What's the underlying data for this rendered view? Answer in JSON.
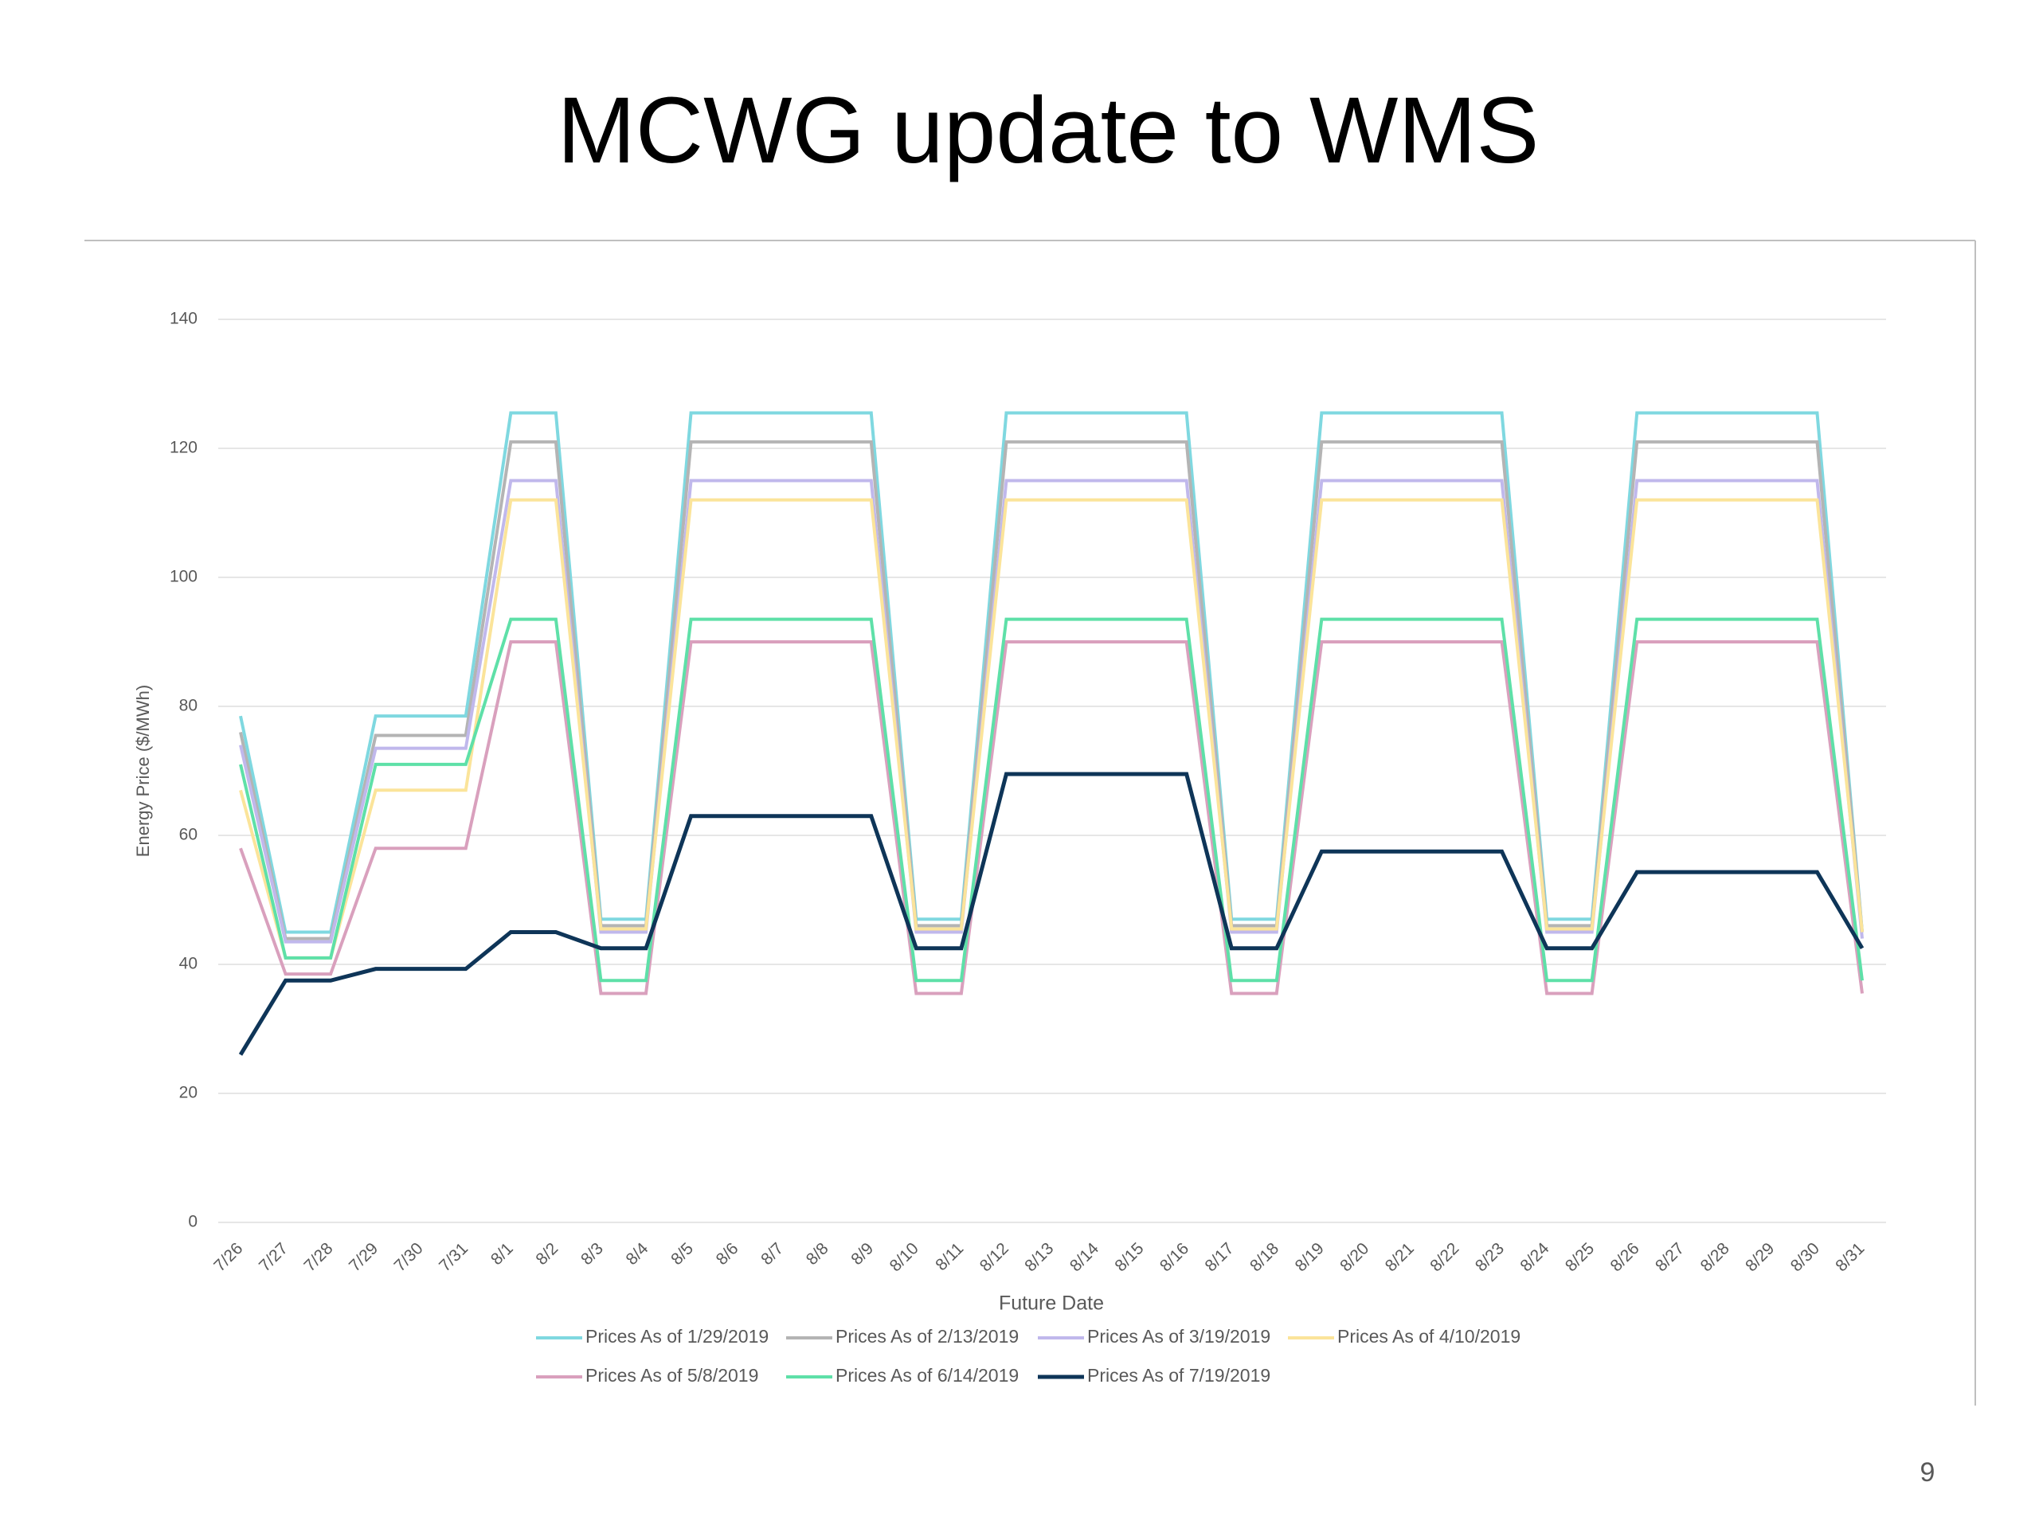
{
  "page_title": "MCWG update to WMS",
  "page_number": "9",
  "chart_data": {
    "type": "line",
    "x_label": "Future Date",
    "y_label": "Energy Price ($/MWh)",
    "categories": [
      "7/26",
      "7/27",
      "7/28",
      "7/29",
      "7/30",
      "7/31",
      "8/1",
      "8/2",
      "8/3",
      "8/4",
      "8/5",
      "8/6",
      "8/7",
      "8/8",
      "8/9",
      "8/10",
      "8/11",
      "8/12",
      "8/13",
      "8/14",
      "8/15",
      "8/16",
      "8/17",
      "8/18",
      "8/19",
      "8/20",
      "8/21",
      "8/22",
      "8/23",
      "8/24",
      "8/25",
      "8/26",
      "8/27",
      "8/28",
      "8/29",
      "8/30",
      "8/31"
    ],
    "ylim": [
      0,
      140
    ],
    "yticks": [
      0,
      20,
      40,
      60,
      80,
      100,
      120,
      140
    ],
    "grid": true,
    "series": [
      {
        "name": "Prices As of 1/29/2019",
        "color": "#7fd8e0",
        "values": [
          78.5,
          45,
          45,
          78.5,
          78.5,
          78.5,
          125.5,
          125.5,
          47,
          47,
          125.5,
          125.5,
          125.5,
          125.5,
          125.5,
          47,
          47,
          125.5,
          125.5,
          125.5,
          125.5,
          125.5,
          47,
          47,
          125.5,
          125.5,
          125.5,
          125.5,
          125.5,
          47,
          47,
          125.5,
          125.5,
          125.5,
          125.5,
          125.5,
          45
        ]
      },
      {
        "name": "Prices As of 2/13/2019",
        "color": "#b4b4b4",
        "values": [
          76,
          44,
          44,
          75.5,
          75.5,
          75.5,
          121,
          121,
          46,
          46,
          121,
          121,
          121,
          121,
          121,
          46,
          46,
          121,
          121,
          121,
          121,
          121,
          46,
          46,
          121,
          121,
          121,
          121,
          121,
          46,
          46,
          121,
          121,
          121,
          121,
          121,
          45
        ]
      },
      {
        "name": "Prices As of 3/19/2019",
        "color": "#c0b8ec",
        "values": [
          74,
          43.5,
          43.5,
          73.5,
          73.5,
          73.5,
          115,
          115,
          45,
          45,
          115,
          115,
          115,
          115,
          115,
          45,
          45,
          115,
          115,
          115,
          115,
          115,
          45,
          45,
          115,
          115,
          115,
          115,
          115,
          45,
          45,
          115,
          115,
          115,
          115,
          115,
          44
        ]
      },
      {
        "name": "Prices As of 4/10/2019",
        "color": "#fbe49a",
        "values": [
          67,
          41,
          41,
          67,
          67,
          67,
          112,
          112,
          45.5,
          45.5,
          112,
          112,
          112,
          112,
          112,
          45.5,
          45.5,
          112,
          112,
          112,
          112,
          112,
          45.5,
          45.5,
          112,
          112,
          112,
          112,
          112,
          45.5,
          45.5,
          112,
          112,
          112,
          112,
          112,
          45
        ]
      },
      {
        "name": "Prices As of 5/8/2019",
        "color": "#d9a0bd",
        "values": [
          58,
          38.5,
          38.5,
          58,
          58,
          58,
          90,
          90,
          35.5,
          35.5,
          90,
          90,
          90,
          90,
          90,
          35.5,
          35.5,
          90,
          90,
          90,
          90,
          90,
          35.5,
          35.5,
          90,
          90,
          90,
          90,
          90,
          35.5,
          35.5,
          90,
          90,
          90,
          90,
          90,
          35.5
        ]
      },
      {
        "name": "Prices As of 6/14/2019",
        "color": "#5ee0a8",
        "values": [
          71,
          41,
          41,
          71,
          71,
          71,
          93.5,
          93.5,
          37.5,
          37.5,
          93.5,
          93.5,
          93.5,
          93.5,
          93.5,
          37.5,
          37.5,
          93.5,
          93.5,
          93.5,
          93.5,
          93.5,
          37.5,
          37.5,
          93.5,
          93.5,
          93.5,
          93.5,
          93.5,
          37.5,
          37.5,
          93.5,
          93.5,
          93.5,
          93.5,
          93.5,
          37.5
        ]
      },
      {
        "name": "Prices As of 7/19/2019",
        "color": "#0e3558",
        "values": [
          26,
          37.5,
          37.5,
          39.3,
          39.3,
          39.3,
          45,
          45,
          42.5,
          42.5,
          63,
          63,
          63,
          63,
          63,
          42.5,
          42.5,
          69.5,
          69.5,
          69.5,
          69.5,
          69.5,
          42.5,
          42.5,
          57.5,
          57.5,
          57.5,
          57.5,
          57.5,
          42.5,
          42.5,
          54.3,
          54.3,
          54.3,
          54.3,
          54.3,
          42.5
        ]
      }
    ]
  }
}
